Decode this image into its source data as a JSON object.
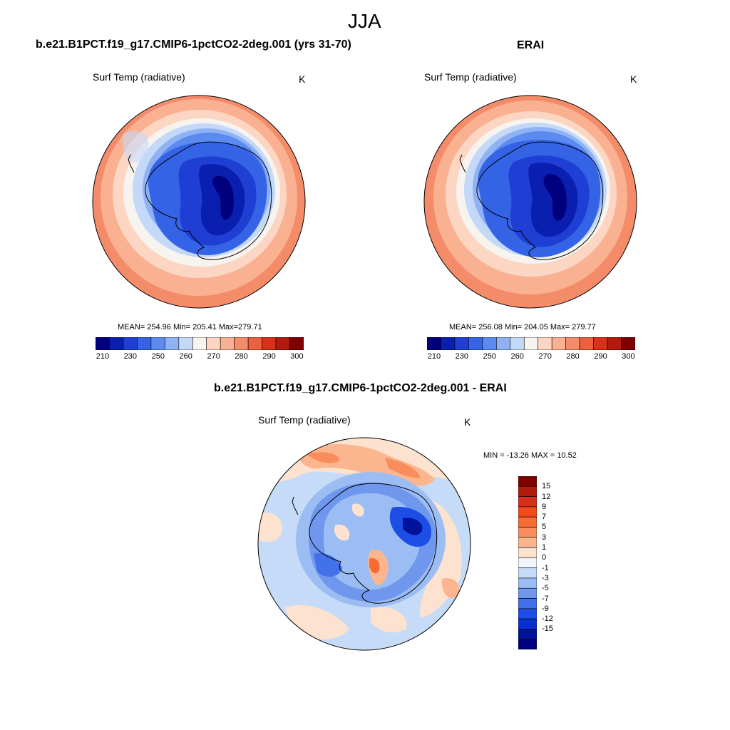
{
  "figure": {
    "season": "JJA",
    "left_title": "b.e21.B1PCT.f19_g17.CMIP6-1pctCO2-2deg.001 (yrs 31-70)",
    "right_title": "ERAI",
    "diff_title": "b.e21.B1PCT.f19_g17.CMIP6-1pctCO2-2deg.001 - ERAI"
  },
  "panels": {
    "model": {
      "variable": "Surf Temp (radiative)",
      "units": "K",
      "stats": "MEAN= 254.96  Min= 205.41  Max=279.71",
      "mean": 254.96,
      "min": 205.41,
      "max": 279.71
    },
    "obs": {
      "variable": "Surf Temp (radiative)",
      "units": "K",
      "stats": "MEAN= 256.08  Min= 204.05  Max= 279.77",
      "mean": 256.08,
      "min": 204.05,
      "max": 279.77
    },
    "diff": {
      "variable": "Surf Temp (radiative)",
      "units": "K",
      "stats": "MIN = -13.26 MAX =  10.52",
      "min": -13.26,
      "max": 10.52
    }
  },
  "colorbar_abs": {
    "colors": [
      "#00007f",
      "#0a1fb0",
      "#1f3fd4",
      "#3563e6",
      "#5b8af0",
      "#8fb2f4",
      "#c4d8f8",
      "#f7f3ee",
      "#fcd6c2",
      "#f9b192",
      "#f48c6a",
      "#ec5f3f",
      "#d9301c",
      "#b01b0d",
      "#7f0000"
    ],
    "tick_labels": [
      "210",
      "230",
      "250",
      "260",
      "270",
      "280",
      "290",
      "300"
    ]
  },
  "colorbar_diff": {
    "colors": [
      "#7f0000",
      "#b01b0d",
      "#d9301c",
      "#f24a1a",
      "#f76b35",
      "#f98e5c",
      "#fbb690",
      "#fde3cf",
      "#f2f6fb",
      "#c6dbf7",
      "#9cbdf3",
      "#6f97ee",
      "#4271ea",
      "#1c4ee6",
      "#0a2fd0",
      "#00139b",
      "#00007f"
    ],
    "tick_labels": [
      "15",
      "12",
      "9",
      "7",
      "5",
      "3",
      "1",
      "0",
      "-1",
      "-3",
      "-5",
      "-7",
      "-9",
      "-12",
      "-15"
    ]
  }
}
